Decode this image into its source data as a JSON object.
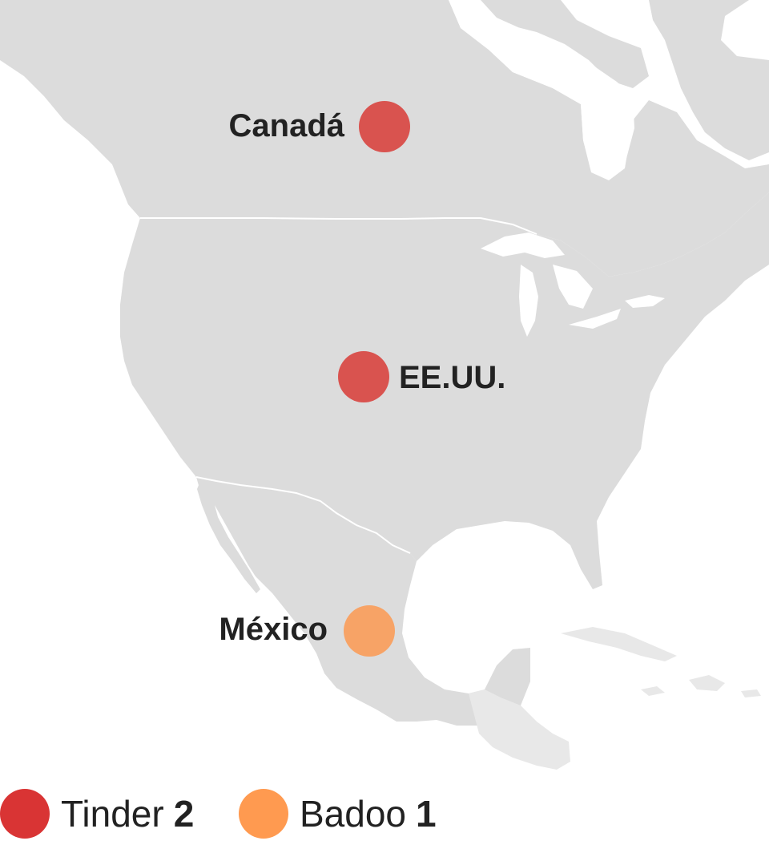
{
  "map": {
    "region": "North America",
    "colors": {
      "land": "#dcdcdc",
      "land_secondary": "#e8e8e8",
      "water": "#ffffff",
      "border": "#ffffff"
    },
    "markers": [
      {
        "label": "Canadá",
        "app": "Tinder",
        "color": "#d9534f"
      },
      {
        "label": "EE.UU.",
        "app": "Tinder",
        "color": "#d9534f"
      },
      {
        "label": "México",
        "app": "Badoo",
        "color": "#f7a366"
      }
    ]
  },
  "legend": {
    "items": [
      {
        "label": "Tinder",
        "count": "2",
        "color": "#d93434"
      },
      {
        "label": "Badoo",
        "count": "1",
        "color": "#ff9a50"
      }
    ]
  }
}
